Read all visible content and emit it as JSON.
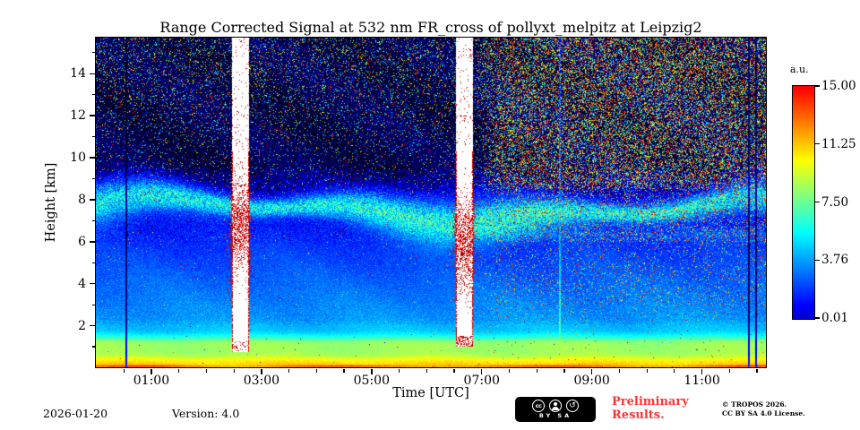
{
  "title": "Range Corrected Signal at 532 nm FR_cross of pollyxt_melpitz at Leipzig2",
  "axes": {
    "x_label": "Time [UTC]",
    "y_label": "Height [km]",
    "x_ticks": [
      {
        "hour": 1,
        "label": "01:00"
      },
      {
        "hour": 3,
        "label": "03:00"
      },
      {
        "hour": 5,
        "label": "05:00"
      },
      {
        "hour": 7,
        "label": "07:00"
      },
      {
        "hour": 9,
        "label": "09:00"
      },
      {
        "hour": 11,
        "label": "11:00"
      }
    ],
    "y_ticks": [
      {
        "km": 2,
        "label": "2"
      },
      {
        "km": 4,
        "label": "4"
      },
      {
        "km": 6,
        "label": "6"
      },
      {
        "km": 8,
        "label": "8"
      },
      {
        "km": 10,
        "label": "10"
      },
      {
        "km": 12,
        "label": "12"
      },
      {
        "km": 14,
        "label": "14"
      }
    ]
  },
  "colorbar": {
    "label": "a.u.",
    "ticks": [
      "15.00",
      "11.25",
      "7.50",
      "3.76",
      "0.01"
    ]
  },
  "footer": {
    "date": "2026-01-20",
    "version": "Version: 4.0",
    "preliminary_line1": "Preliminary",
    "preliminary_line2": "Results.",
    "preliminary_color": "#ff3333",
    "copyright_line1": "© TROPOS 2026.",
    "copyright_line2": "CC BY SA 4.0 License."
  },
  "cc_badge": {
    "cc": "cc",
    "sa_glyph": "↺",
    "caption": "BY SA"
  },
  "chart_data": {
    "type": "heatmap",
    "title": "Range Corrected Signal at 532 nm FR_cross of pollyxt_melpitz at Leipzig2",
    "x": {
      "label": "Time [UTC]",
      "unit": "hours UTC",
      "range_hours": [
        0,
        12.17
      ]
    },
    "y": {
      "label": "Height [km]",
      "range_km": [
        0,
        15.7
      ]
    },
    "z": {
      "label": "a.u.",
      "range": [
        0.01,
        15.0
      ],
      "colormap": "jet",
      "colorbar_ticks": [
        15.0,
        11.25,
        7.5,
        3.76,
        0.01
      ]
    },
    "seed": 42,
    "features": {
      "boundary_layer": {
        "top_km": 2.0,
        "description": "bright green-yellow aerosol layers below 2 km, strongest (yellow-orange) near the surface"
      },
      "mid_blue_region": {
        "from_km": 2,
        "to_km": 9.5,
        "description": "moderate blue signal decreasing with height"
      },
      "aerosol_band": {
        "center_km": 7.55,
        "wander_km": 0.45,
        "width_km": 0.5,
        "description": "speckled cyan-green layer near 7-8.5 km lasting the whole period"
      },
      "night_noise": {
        "before_hour": 6.85,
        "description": "dark background with sparse multicolor speckle noise above ~8 km"
      },
      "day_noise": {
        "after_hour": 7.35,
        "description": "dense green/yellow/red speckle background noise above ~3 km after sunrise"
      },
      "calibration_columns": [
        {
          "start_hour": 2.46,
          "end_hour": 2.77,
          "base_km": 0.75,
          "red_center_km": 6.9,
          "red_sigma_km": 1.7,
          "base_red": 0.15,
          "description": "white saturated column (~02:30) with dense red speckle 4.5-9.5 km"
        },
        {
          "start_hour": 6.53,
          "end_hour": 6.84,
          "base_km": 1.0,
          "red_center_km": 5.9,
          "red_sigma_km": 1.8,
          "base_red": 0.45,
          "description": "white saturated column (~06:40) with dense red speckle 3-9 km"
        }
      ],
      "green_line_hour": 8.42,
      "dark_profile_hours": [
        0.55,
        11.86,
        11.98
      ]
    }
  }
}
